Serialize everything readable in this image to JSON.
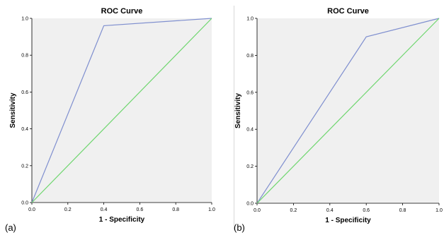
{
  "chart_data": [
    {
      "type": "line",
      "panel_label": "(a)",
      "title": "ROC Curve",
      "xlabel": "1 - Specificity",
      "ylabel": "Sensitivity",
      "xlim": [
        0.0,
        1.0
      ],
      "ylim": [
        0.0,
        1.0
      ],
      "x_ticks": [
        "0.0",
        "0.2",
        "0.4",
        "0.6",
        "0.8",
        "1.0"
      ],
      "y_ticks": [
        "0.0",
        "0.2",
        "0.4",
        "0.6",
        "0.8",
        "1.0"
      ],
      "grid": false,
      "plot_background": "#f0f0f0",
      "series": [
        {
          "color": "#7f8fcf",
          "x": [
            0.0,
            0.4,
            1.0
          ],
          "y": [
            0.0,
            0.96,
            1.0
          ]
        },
        {
          "color": "#6fd66f",
          "x": [
            0.0,
            1.0
          ],
          "y": [
            0.0,
            1.0
          ]
        }
      ]
    },
    {
      "type": "line",
      "panel_label": "(b)",
      "title": "ROC Curve",
      "xlabel": "1 - Specificity",
      "ylabel": "Sensitivity",
      "xlim": [
        0.0,
        1.0
      ],
      "ylim": [
        0.0,
        1.0
      ],
      "x_ticks": [
        "0.0",
        "0.2",
        "0.4",
        "0.6",
        "0.8",
        "1.0"
      ],
      "y_ticks": [
        "0.0",
        "0.2",
        "0.4",
        "0.6",
        "0.8",
        "1.0"
      ],
      "grid": false,
      "plot_background": "#f0f0f0",
      "series": [
        {
          "color": "#7f8fcf",
          "x": [
            0.0,
            0.6,
            1.0
          ],
          "y": [
            0.0,
            0.9,
            1.0
          ]
        },
        {
          "color": "#6fd66f",
          "x": [
            0.0,
            1.0
          ],
          "y": [
            0.0,
            1.0
          ]
        }
      ]
    }
  ]
}
